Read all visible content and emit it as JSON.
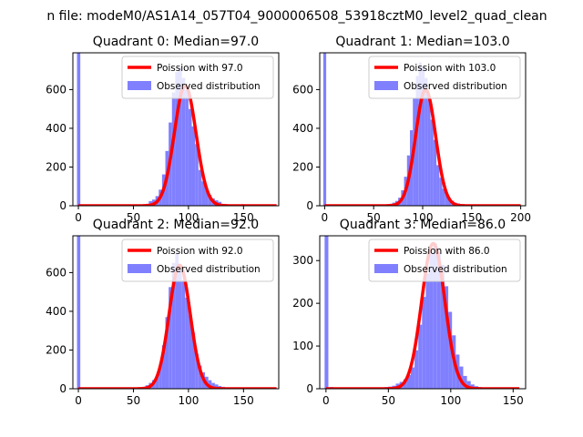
{
  "chart_data": {
    "type": "bar",
    "suptitle": "n file: modeM0/AS1A14_057T04_9000006508_53918cztM0_level2_quad_clean",
    "legend_position": "upper right",
    "colors": {
      "histogram": "#8080ff",
      "poisson_line": "#ff0000",
      "spike": "#8080ff"
    },
    "panels": [
      {
        "title": "Quadrant 0: Median=97.0",
        "legend_line": "Poission with 97.0",
        "legend_hist": "Observed distribution",
        "median": 97.0,
        "xlim": [
          -5,
          182
        ],
        "ylim": [
          0,
          790
        ],
        "xticks": [
          0,
          50,
          100,
          150
        ],
        "yticks": [
          0,
          200,
          400,
          600
        ],
        "spike_height": 790,
        "bins": [
          [
            55,
            2
          ],
          [
            58,
            6
          ],
          [
            61,
            10
          ],
          [
            64,
            24
          ],
          [
            67,
            32
          ],
          [
            70,
            50
          ],
          [
            73,
            83
          ],
          [
            76,
            162
          ],
          [
            79,
            283
          ],
          [
            82,
            430
          ],
          [
            85,
            585
          ],
          [
            88,
            690
          ],
          [
            91,
            715
          ],
          [
            94,
            660
          ],
          [
            97,
            600
          ],
          [
            100,
            500
          ],
          [
            103,
            410
          ],
          [
            106,
            318
          ],
          [
            109,
            185
          ],
          [
            112,
            126
          ],
          [
            115,
            82
          ],
          [
            118,
            56
          ],
          [
            121,
            38
          ],
          [
            124,
            28
          ],
          [
            127,
            20
          ],
          [
            130,
            10
          ],
          [
            133,
            8
          ],
          [
            136,
            5
          ],
          [
            139,
            3
          ],
          [
            142,
            2
          ],
          [
            145,
            2
          ],
          [
            148,
            8
          ],
          [
            151,
            5
          ],
          [
            154,
            4
          ],
          [
            157,
            3
          ]
        ],
        "poisson_peak": 620,
        "xmax": 180
      },
      {
        "title": "Quadrant 1: Median=103.0",
        "legend_line": "Poission with 103.0",
        "legend_hist": "Observed distribution",
        "median": 103.0,
        "xlim": [
          -5,
          205
        ],
        "ylim": [
          0,
          790
        ],
        "xticks": [
          0,
          50,
          100,
          150,
          200
        ],
        "yticks": [
          0,
          200,
          400,
          600
        ],
        "spike_height": 790,
        "bins": [
          [
            60,
            3
          ],
          [
            63,
            6
          ],
          [
            66,
            10
          ],
          [
            69,
            16
          ],
          [
            72,
            25
          ],
          [
            75,
            42
          ],
          [
            78,
            80
          ],
          [
            81,
            150
          ],
          [
            84,
            260
          ],
          [
            87,
            390
          ],
          [
            90,
            555
          ],
          [
            93,
            670
          ],
          [
            96,
            740
          ],
          [
            99,
            715
          ],
          [
            102,
            660
          ],
          [
            105,
            560
          ],
          [
            108,
            445
          ],
          [
            111,
            340
          ],
          [
            114,
            210
          ],
          [
            117,
            145
          ],
          [
            120,
            88
          ],
          [
            123,
            60
          ],
          [
            126,
            40
          ],
          [
            129,
            26
          ],
          [
            132,
            16
          ],
          [
            135,
            12
          ],
          [
            138,
            8
          ],
          [
            141,
            5
          ],
          [
            144,
            3
          ]
        ],
        "poisson_peak": 600,
        "xmax": 200
      },
      {
        "title": "Quadrant 2: Median=92.0",
        "legend_line": "Poission with 92.0",
        "legend_hist": "Observed distribution",
        "median": 92.0,
        "xlim": [
          -5,
          182
        ],
        "ylim": [
          0,
          790
        ],
        "xticks": [
          0,
          50,
          100,
          150
        ],
        "yticks": [
          0,
          200,
          400,
          600
        ],
        "spike_height": 790,
        "bins": [
          [
            52,
            3
          ],
          [
            55,
            6
          ],
          [
            58,
            10
          ],
          [
            61,
            18
          ],
          [
            64,
            30
          ],
          [
            67,
            45
          ],
          [
            70,
            60
          ],
          [
            73,
            118
          ],
          [
            76,
            225
          ],
          [
            79,
            370
          ],
          [
            82,
            525
          ],
          [
            85,
            650
          ],
          [
            88,
            700
          ],
          [
            91,
            640
          ],
          [
            94,
            560
          ],
          [
            97,
            470
          ],
          [
            100,
            380
          ],
          [
            103,
            290
          ],
          [
            106,
            180
          ],
          [
            109,
            120
          ],
          [
            112,
            85
          ],
          [
            115,
            62
          ],
          [
            118,
            44
          ],
          [
            121,
            30
          ],
          [
            124,
            22
          ],
          [
            127,
            14
          ],
          [
            130,
            10
          ],
          [
            133,
            7
          ],
          [
            136,
            5
          ],
          [
            139,
            3
          ],
          [
            142,
            2
          ],
          [
            145,
            2
          ]
        ],
        "poisson_peak": 638,
        "xmax": 180
      },
      {
        "title": "Quadrant 3: Median=86.0",
        "legend_line": "Poission with 86.0",
        "legend_hist": "Observed distribution",
        "median": 86.0,
        "xlim": [
          -5,
          160
        ],
        "ylim": [
          0,
          358
        ],
        "xticks": [
          0,
          50,
          100,
          150
        ],
        "yticks": [
          0,
          100,
          200,
          300
        ],
        "spike_height": 358,
        "bins": [
          [
            3,
            4
          ],
          [
            6,
            3
          ],
          [
            44,
            2
          ],
          [
            47,
            4
          ],
          [
            50,
            5
          ],
          [
            53,
            7
          ],
          [
            56,
            12
          ],
          [
            59,
            16
          ],
          [
            62,
            22
          ],
          [
            65,
            32
          ],
          [
            68,
            50
          ],
          [
            71,
            90
          ],
          [
            74,
            150
          ],
          [
            77,
            215
          ],
          [
            80,
            270
          ],
          [
            83,
            315
          ],
          [
            86,
            340
          ],
          [
            89,
            320
          ],
          [
            92,
            290
          ],
          [
            95,
            240
          ],
          [
            98,
            180
          ],
          [
            101,
            125
          ],
          [
            104,
            80
          ],
          [
            107,
            52
          ],
          [
            110,
            30
          ],
          [
            113,
            18
          ],
          [
            116,
            10
          ],
          [
            119,
            6
          ],
          [
            122,
            4
          ],
          [
            125,
            2
          ]
        ],
        "poisson_peak": 340,
        "xmax": 155
      }
    ]
  }
}
